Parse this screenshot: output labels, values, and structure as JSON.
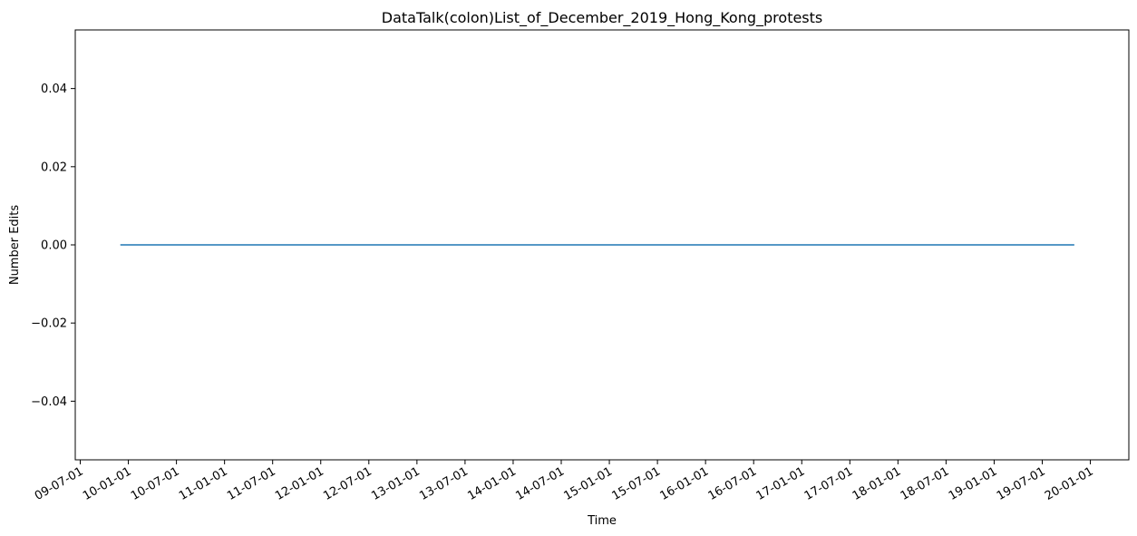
{
  "chart_data": {
    "type": "line",
    "title": "DataTalk(colon)List_of_December_2019_Hong_Kong_protests",
    "xlabel": "Time",
    "ylabel": "Number Edits",
    "x_tick_labels": [
      "09-07-01",
      "10-01-01",
      "10-07-01",
      "11-01-01",
      "11-07-01",
      "12-01-01",
      "12-07-01",
      "13-01-01",
      "13-07-01",
      "14-01-01",
      "14-07-01",
      "15-01-01",
      "15-07-01",
      "16-01-01",
      "16-07-01",
      "17-01-01",
      "17-07-01",
      "18-01-01",
      "18-07-01",
      "19-01-01",
      "19-07-01",
      "20-01-01"
    ],
    "y_ticks": [
      -0.04,
      -0.02,
      0.0,
      0.02,
      0.04
    ],
    "y_tick_labels": [
      "−0.04",
      "−0.02",
      "0.00",
      "0.02",
      "0.04"
    ],
    "ylim": [
      -0.055,
      0.055
    ],
    "series": [
      {
        "color": "#1f77b4",
        "x": [
          "2009-12-01",
          "2019-11-01"
        ],
        "y": [
          0,
          0
        ]
      }
    ],
    "grid": false,
    "legend": "none"
  }
}
